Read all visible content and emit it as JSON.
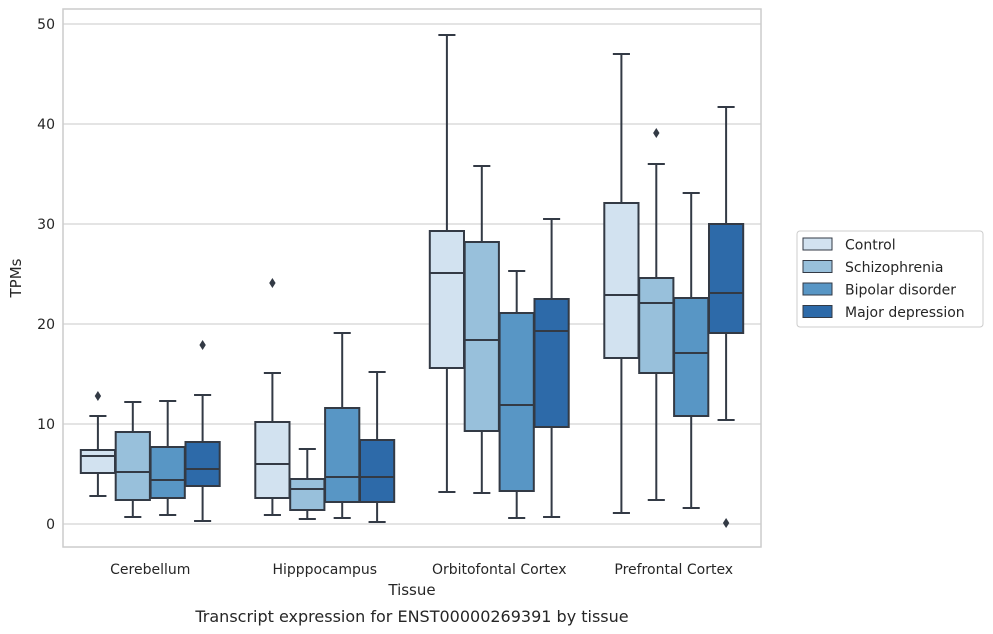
{
  "chart_data": {
    "type": "box",
    "caption": "Transcript expression for ENST00000269391 by tissue",
    "xlabel": "Tissue",
    "ylabel": "TPMs",
    "ylim": [
      -2.3,
      51.5
    ],
    "yticks": [
      0,
      10,
      20,
      30,
      40,
      50
    ],
    "grid": "horizontal",
    "legend_position": "right",
    "categories": [
      "Cerebellum",
      "Hipppocampus",
      "Orbitofontal Cortex",
      "Prefrontal Cortex"
    ],
    "series": [
      {
        "name": "Control",
        "color": "#d2e2f0",
        "boxes": [
          {
            "whisker_low": 2.8,
            "q1": 5.1,
            "median": 6.8,
            "q3": 7.4,
            "whisker_high": 10.8,
            "outliers": [
              12.8
            ]
          },
          {
            "whisker_low": 0.9,
            "q1": 2.6,
            "median": 6.0,
            "q3": 10.2,
            "whisker_high": 15.1,
            "outliers": [
              24.1
            ]
          },
          {
            "whisker_low": 3.2,
            "q1": 15.6,
            "median": 25.1,
            "q3": 29.3,
            "whisker_high": 48.9,
            "outliers": []
          },
          {
            "whisker_low": 1.1,
            "q1": 16.6,
            "median": 22.9,
            "q3": 32.1,
            "whisker_high": 47.0,
            "outliers": []
          }
        ]
      },
      {
        "name": "Schizophrenia",
        "color": "#98c0db",
        "boxes": [
          {
            "whisker_low": 0.7,
            "q1": 2.4,
            "median": 5.2,
            "q3": 9.2,
            "whisker_high": 12.2,
            "outliers": []
          },
          {
            "whisker_low": 0.5,
            "q1": 1.4,
            "median": 3.5,
            "q3": 4.5,
            "whisker_high": 7.5,
            "outliers": []
          },
          {
            "whisker_low": 3.1,
            "q1": 9.3,
            "median": 18.4,
            "q3": 28.2,
            "whisker_high": 35.8,
            "outliers": []
          },
          {
            "whisker_low": 2.4,
            "q1": 15.1,
            "median": 22.1,
            "q3": 24.6,
            "whisker_high": 36.0,
            "outliers": [
              39.1
            ]
          }
        ]
      },
      {
        "name": "Bipolar disorder",
        "color": "#5896c5",
        "boxes": [
          {
            "whisker_low": 0.9,
            "q1": 2.6,
            "median": 4.4,
            "q3": 7.7,
            "whisker_high": 12.3,
            "outliers": []
          },
          {
            "whisker_low": 0.6,
            "q1": 2.2,
            "median": 4.7,
            "q3": 11.6,
            "whisker_high": 19.1,
            "outliers": []
          },
          {
            "whisker_low": 0.6,
            "q1": 3.3,
            "median": 11.9,
            "q3": 21.1,
            "whisker_high": 25.3,
            "outliers": []
          },
          {
            "whisker_low": 1.6,
            "q1": 10.8,
            "median": 17.1,
            "q3": 22.6,
            "whisker_high": 33.1,
            "outliers": []
          }
        ]
      },
      {
        "name": "Major depression",
        "color": "#2d6aa9",
        "boxes": [
          {
            "whisker_low": 0.3,
            "q1": 3.8,
            "median": 5.5,
            "q3": 8.2,
            "whisker_high": 12.9,
            "outliers": [
              17.9
            ]
          },
          {
            "whisker_low": 0.2,
            "q1": 2.2,
            "median": 4.7,
            "q3": 8.4,
            "whisker_high": 15.2,
            "outliers": []
          },
          {
            "whisker_low": 0.7,
            "q1": 9.7,
            "median": 19.3,
            "q3": 22.5,
            "whisker_high": 30.5,
            "outliers": []
          },
          {
            "whisker_low": 10.4,
            "q1": 19.1,
            "median": 23.1,
            "q3": 30.0,
            "whisker_high": 41.7,
            "outliers": [
              0.1
            ]
          }
        ]
      }
    ]
  }
}
